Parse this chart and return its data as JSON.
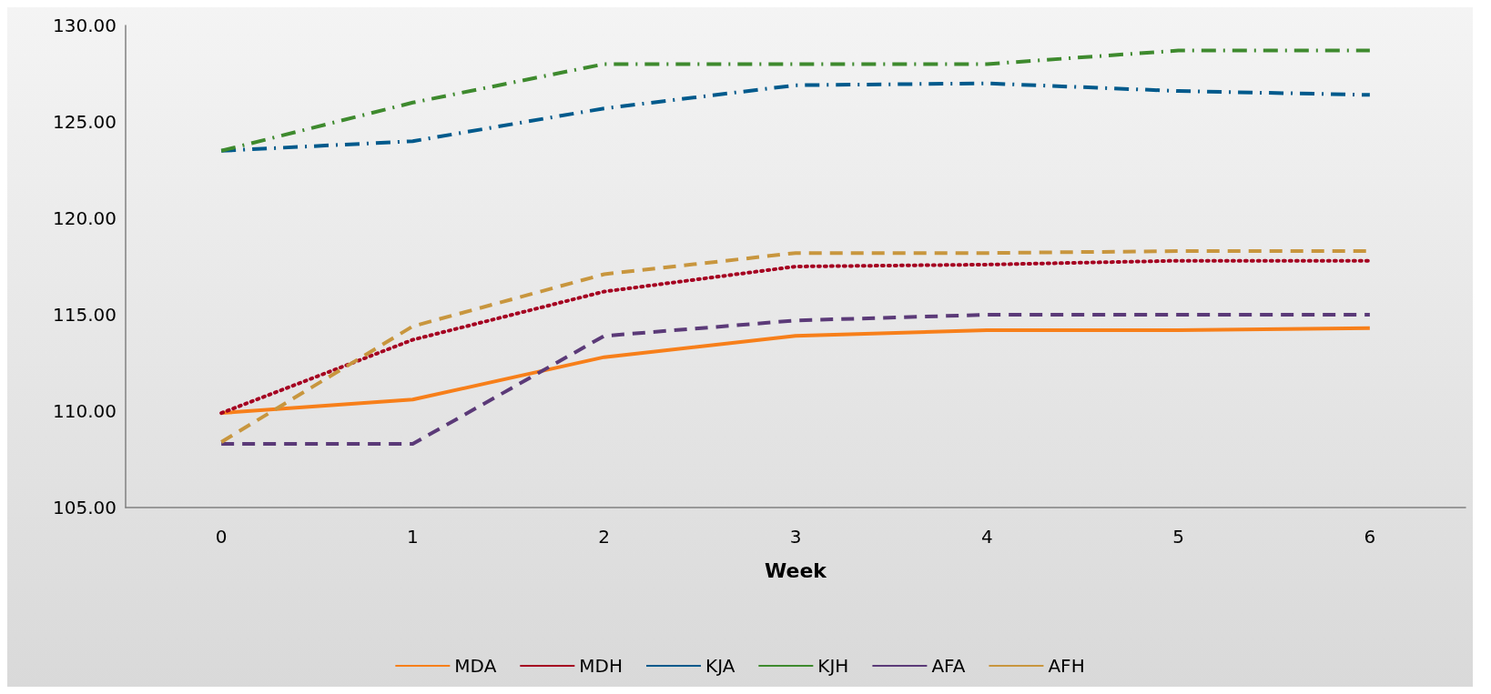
{
  "chart_data": {
    "type": "line",
    "xlabel": "Week",
    "categories": [
      "0",
      "1",
      "2",
      "3",
      "4",
      "5",
      "6"
    ],
    "ylim": [
      105,
      130
    ],
    "yticks": [
      {
        "value": 105,
        "label": "105.00"
      },
      {
        "value": 110,
        "label": "110.00"
      },
      {
        "value": 115,
        "label": "115.00"
      },
      {
        "value": 120,
        "label": "120.00"
      },
      {
        "value": 125,
        "label": "125.00"
      },
      {
        "value": 130,
        "label": "130.00"
      }
    ],
    "grid": false,
    "legend": "bottom",
    "marker": "none",
    "series": [
      {
        "name": "MDA",
        "color": "#f77f1a",
        "line_style": "solid",
        "values": [
          109.9,
          110.6,
          112.8,
          113.9,
          114.2,
          114.2,
          114.3
        ]
      },
      {
        "name": "MDH",
        "color": "#a50021",
        "line_style": "dotted",
        "values": [
          109.9,
          113.7,
          116.2,
          117.5,
          117.6,
          117.8,
          117.8
        ]
      },
      {
        "name": "KJA",
        "color": "#005a8c",
        "line_style": "dashdot",
        "values": [
          123.5,
          124.0,
          125.7,
          126.9,
          127.0,
          126.6,
          126.4
        ]
      },
      {
        "name": "KJH",
        "color": "#3e8a2e",
        "line_style": "dashdot",
        "values": [
          123.5,
          126.0,
          128.0,
          128.0,
          128.0,
          128.7,
          128.7
        ]
      },
      {
        "name": "AFA",
        "color": "#5b3a78",
        "line_style": "dashed",
        "values": [
          108.3,
          108.3,
          113.9,
          114.7,
          115.0,
          115.0,
          115.0
        ]
      },
      {
        "name": "AFH",
        "color": "#c8963e",
        "line_style": "dashed",
        "values": [
          108.4,
          114.4,
          117.1,
          118.2,
          118.2,
          118.3,
          118.3
        ]
      }
    ]
  }
}
